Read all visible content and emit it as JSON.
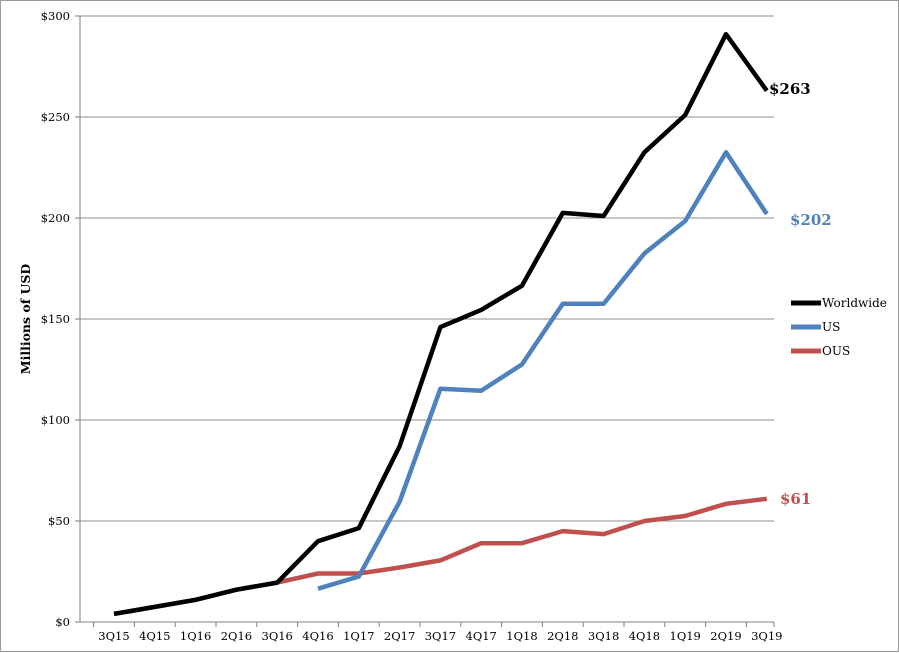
{
  "chart_data": {
    "type": "line",
    "ylabel": "Millions of USD",
    "xlabel": "",
    "title": "",
    "ylim": [
      0,
      300
    ],
    "y_ticks": [
      0,
      50,
      100,
      150,
      200,
      250,
      300
    ],
    "y_tick_labels": [
      "$0",
      "$50",
      "$100",
      "$150",
      "$200",
      "$250",
      "$300"
    ],
    "categories": [
      "3Q15",
      "4Q15",
      "1Q16",
      "2Q16",
      "3Q16",
      "4Q16",
      "1Q17",
      "2Q17",
      "3Q17",
      "4Q17",
      "1Q18",
      "2Q18",
      "3Q18",
      "4Q18",
      "1Q19",
      "2Q19",
      "3Q19"
    ],
    "grid": "horizontal",
    "legend_position": "right",
    "series": [
      {
        "name": "Worldwide",
        "color": "#000000",
        "values": [
          4,
          7.5,
          11,
          16,
          19.5,
          40,
          46.5,
          87,
          146,
          154.5,
          166.5,
          202.5,
          201,
          232.5,
          251,
          291,
          263
        ]
      },
      {
        "name": "US",
        "color": "#4f81bd",
        "values": [
          null,
          null,
          null,
          null,
          null,
          16.5,
          22.5,
          59.5,
          115.5,
          114.5,
          127.5,
          157.5,
          157.5,
          182.5,
          198.5,
          232.5,
          202
        ]
      },
      {
        "name": "OUS",
        "color": "#c0504d",
        "values": [
          4,
          7.5,
          11,
          16,
          19.5,
          24,
          24,
          27,
          30.5,
          39,
          39,
          45,
          43.5,
          50,
          52.5,
          58.5,
          61
        ]
      }
    ],
    "end_labels": [
      {
        "series": "Worldwide",
        "text": "$263",
        "color": "#000000"
      },
      {
        "series": "US",
        "text": "$202",
        "color": "#4f81bd"
      },
      {
        "series": "OUS",
        "text": "$61",
        "color": "#c0504d"
      }
    ]
  }
}
